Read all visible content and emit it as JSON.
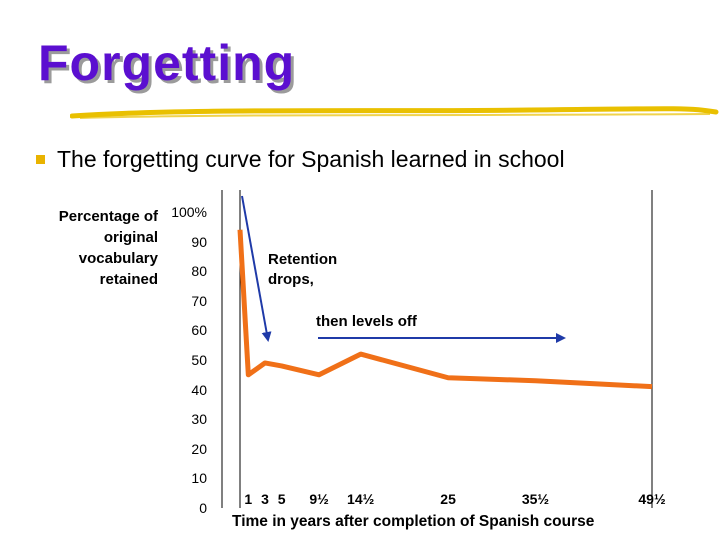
{
  "slide": {
    "title": "Forgetting",
    "bullet": "The forgetting curve for Spanish learned in school"
  },
  "colors": {
    "title": "#5b0fd0",
    "underline": "#e9c000",
    "bullet_marker": "#e9b300",
    "curve": "#f07018",
    "arrow": "#1f3aa8",
    "grid": "#000000"
  },
  "chart_data": {
    "type": "line",
    "ylabel_lines": [
      "Percentage of",
      "original",
      "vocabulary",
      "retained"
    ],
    "xlabel": "Time in years after completion of Spanish course",
    "ylim": [
      0,
      100
    ],
    "y_ticks": [
      "100%",
      "90",
      "80",
      "70",
      "60",
      "50",
      "40",
      "30",
      "20",
      "10",
      "0"
    ],
    "x_tick_labels": [
      "1",
      "3",
      "5",
      "9½",
      "14½",
      "25",
      "35½",
      "49½"
    ],
    "vertical_gridlines_at": [
      0,
      49.5
    ],
    "grid": "vertical lines at start and end",
    "series": [
      {
        "x": [
          0,
          1,
          3,
          5,
          9.5,
          14.5,
          25,
          35.5,
          49.5
        ],
        "values": [
          94,
          45,
          49,
          48,
          45,
          52,
          44,
          43,
          41
        ]
      }
    ],
    "annotations": [
      {
        "text_lines": [
          "Retention",
          "drops,"
        ],
        "arrow": "down to the curve near year 3"
      },
      {
        "text_lines": [
          "then levels off"
        ],
        "arrow": "right across the later years"
      }
    ]
  }
}
